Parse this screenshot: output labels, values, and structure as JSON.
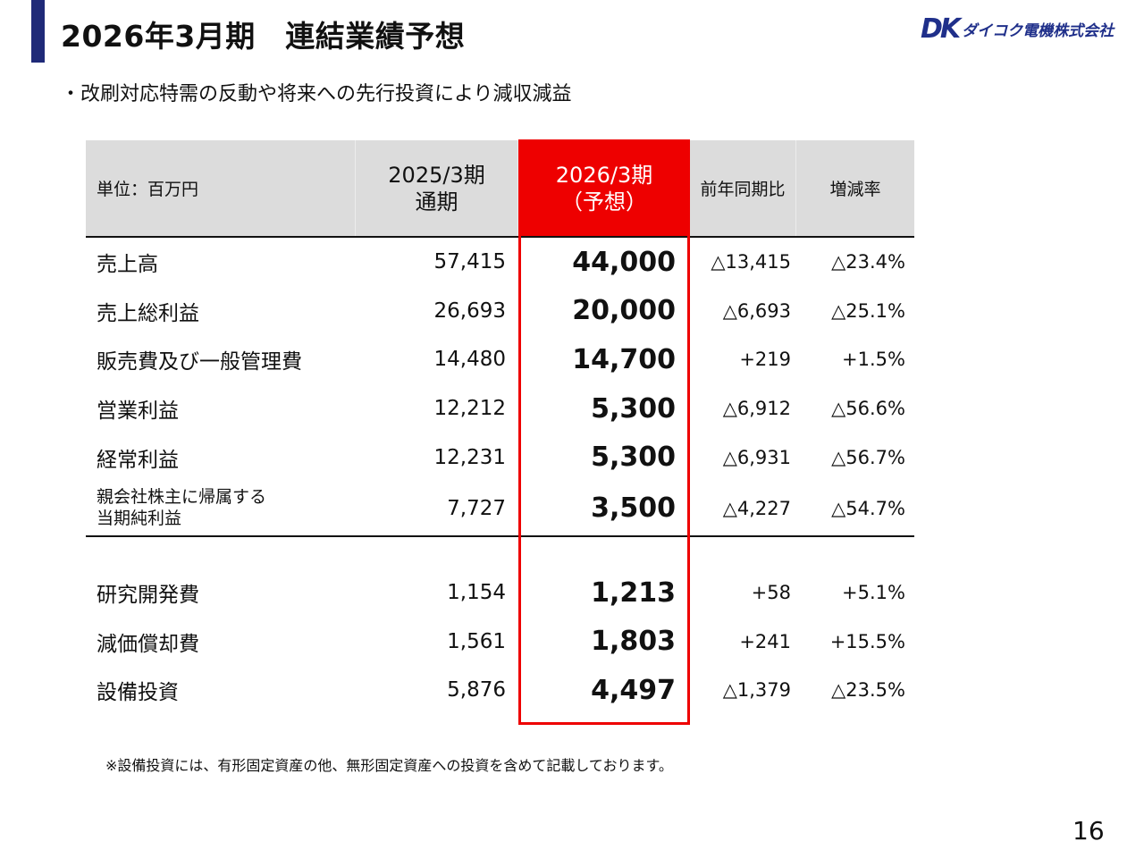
{
  "header": {
    "title": "2026年3月期　連結業績予想",
    "logo_mark": "DK",
    "logo_text": "ダイコク電機株式会社"
  },
  "subtitle": "・改刷対応特需の反動や将来への先行投資により減収減益",
  "table": {
    "columns": {
      "unit": "単位：百万円",
      "prev_line1": "2025/3期",
      "prev_line2": "通期",
      "forecast_line1": "2026/3期",
      "forecast_line2": "（予想）",
      "yoy": "前年同期比",
      "rate": "増減率"
    },
    "rows": [
      {
        "label": "売上高",
        "prev": "57,415",
        "forecast": "44,000",
        "yoy": "△13,415",
        "rate": "△23.4%"
      },
      {
        "label": "売上総利益",
        "prev": "26,693",
        "forecast": "20,000",
        "yoy": "△6,693",
        "rate": "△25.1%"
      },
      {
        "label": "販売費及び一般管理費",
        "prev": "14,480",
        "forecast": "14,700",
        "yoy": "+219",
        "rate": "+1.5%"
      },
      {
        "label": "営業利益",
        "prev": "12,212",
        "forecast": "5,300",
        "yoy": "△6,912",
        "rate": "△56.6%"
      },
      {
        "label": "経常利益",
        "prev": "12,231",
        "forecast": "5,300",
        "yoy": "△6,931",
        "rate": "△56.7%"
      },
      {
        "label_line1": "親会社株主に帰属する",
        "label_line2": "当期純利益",
        "prev": "7,727",
        "forecast": "3,500",
        "yoy": "△4,227",
        "rate": "△54.7%"
      },
      {
        "label": "研究開発費",
        "prev": "1,154",
        "forecast": "1,213",
        "yoy": "+58",
        "rate": "+5.1%"
      },
      {
        "label": "減価償却費",
        "prev": "1,561",
        "forecast": "1,803",
        "yoy": "+241",
        "rate": "+15.5%"
      },
      {
        "label": "設備投資",
        "prev": "5,876",
        "forecast": "4,497",
        "yoy": "△1,379",
        "rate": "△23.5%"
      }
    ]
  },
  "footnote": "※設備投資には、有形固定資産の他、無形固定資産への投資を含めて記載しております。",
  "page_number": "16",
  "colors": {
    "accent_bar": "#1f2a78",
    "forecast_highlight": "#ee0000",
    "header_bg": "#dcdcdc",
    "logo": "#1f2f8a"
  }
}
